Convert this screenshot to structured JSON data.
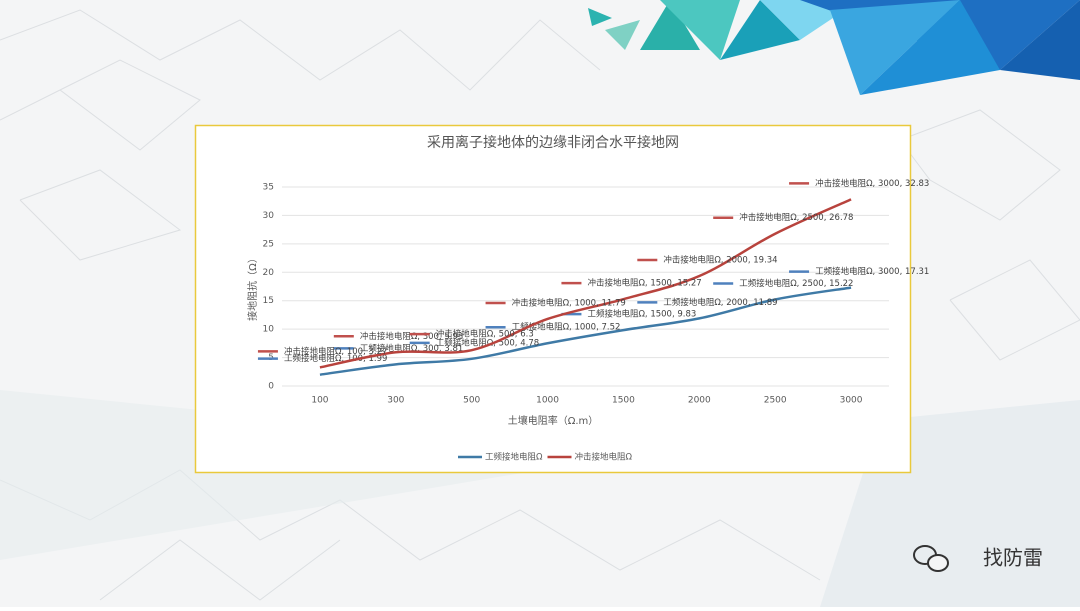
{
  "chart_data": {
    "type": "line",
    "title": "采用离子接地体的边缘非闭合水平接地网",
    "x_label": "土壤电阻率（Ω.m）",
    "y_label": "接地阻抗（Ω）",
    "categories": [
      "100",
      "300",
      "500",
      "1000",
      "1500",
      "2000",
      "2500",
      "3000"
    ],
    "ylim": [
      0,
      35
    ],
    "yticks": [
      0,
      5,
      10,
      15,
      20,
      25,
      30,
      35
    ],
    "legend": "bottom",
    "series": [
      {
        "name": "工频接地电阻Ω",
        "color": "#3f7aa6",
        "values": [
          1.99,
          3.81,
          4.78,
          7.52,
          9.83,
          11.89,
          15.22,
          17.31
        ],
        "value_labels": [
          "工频接地电阻Ω, 100, 1.99",
          "工频接地电阻Ω, 300, 3.81",
          "工频接地电阻Ω, 500, 4.78",
          "工频接地电阻Ω, 1000, 7.52",
          "工频接地电阻Ω, 1500, 9.83",
          "工频接地电阻Ω, 2000, 11.89",
          "工频接地电阻Ω, 2500, 15.22",
          "工频接地电阻Ω, 3000, 17.31"
        ]
      },
      {
        "name": "冲击接地电阻Ω",
        "color": "#b8433d",
        "values": [
          3.27,
          5.93,
          6.3,
          11.79,
          15.27,
          19.34,
          26.78,
          32.83
        ],
        "value_labels": [
          "冲击接地电阻Ω, 100, 3.27",
          "冲击接地电阻Ω, 300, 5.93",
          "冲击接地电阻Ω, 500, 6.3",
          "冲击接地电阻Ω, 1000, 11.79",
          "冲击接地电阻Ω, 1500, 15.27",
          "冲击接地电阻Ω, 2000, 19.34",
          "冲击接地电阻Ω, 2500, 26.78",
          "冲击接地电阻Ω, 3000, 32.83"
        ]
      }
    ]
  },
  "watermark": "找防雷"
}
